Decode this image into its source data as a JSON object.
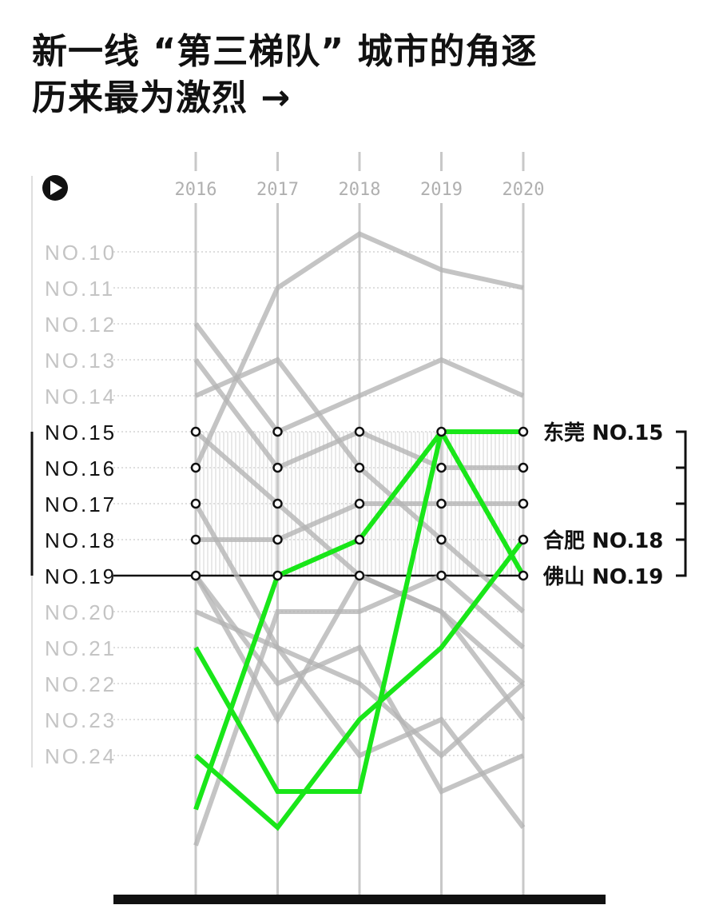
{
  "title": {
    "line1": "新一线 “第三梯队” 城市的角逐",
    "line2": "历来最为激烈 →"
  },
  "colors": {
    "highlight": "#19e619",
    "other": "#b4b4b4",
    "axis": "#c8c8c8",
    "text_dark": "#111111",
    "text_light": "#c4c4c4"
  },
  "icons": {
    "play": "play-icon"
  },
  "chart_data": {
    "type": "line",
    "subtype": "bump",
    "x": [
      "2016",
      "2017",
      "2018",
      "2019",
      "2020"
    ],
    "y_tick_labels": [
      "NO.10",
      "NO.11",
      "NO.12",
      "NO.13",
      "NO.14",
      "NO.15",
      "NO.16",
      "NO.17",
      "NO.18",
      "NO.19",
      "NO.20",
      "NO.21",
      "NO.22",
      "NO.23",
      "NO.24"
    ],
    "y_ticks": [
      10,
      11,
      12,
      13,
      14,
      15,
      16,
      17,
      18,
      19,
      20,
      21,
      22,
      23,
      24
    ],
    "y_range": [
      9,
      26
    ],
    "y_inverted": true,
    "grid": "dotted horizontal",
    "highlighted_band": [
      15,
      19
    ],
    "series": [
      {
        "name": "东莞",
        "label": "东莞 NO.15",
        "highlight": true,
        "values": [
          21,
          25,
          25,
          15,
          15
        ]
      },
      {
        "name": "合肥",
        "label": "合肥 NO.18",
        "highlight": true,
        "values": [
          24,
          26,
          23,
          21,
          18
        ]
      },
      {
        "name": "佛山",
        "label": "佛山 NO.19",
        "highlight": true,
        "values": [
          25.5,
          19,
          18,
          15,
          19
        ]
      },
      {
        "values": [
          12,
          15,
          14,
          13,
          14
        ],
        "highlight": false
      },
      {
        "values": [
          13,
          16,
          15,
          16,
          16
        ],
        "highlight": false
      },
      {
        "values": [
          14,
          13,
          16,
          18,
          20
        ],
        "highlight": false
      },
      {
        "values": [
          15,
          17,
          19,
          20,
          23
        ],
        "highlight": false
      },
      {
        "values": [
          16,
          11,
          9.5,
          10.5,
          11
        ],
        "highlight": false
      },
      {
        "values": [
          17,
          21,
          22,
          24,
          22
        ],
        "highlight": false
      },
      {
        "values": [
          18,
          18,
          17,
          17,
          17
        ],
        "highlight": false
      },
      {
        "values": [
          19,
          22,
          21,
          25,
          24
        ],
        "highlight": false
      },
      {
        "values": [
          20,
          21,
          24,
          23,
          26
        ],
        "highlight": false
      },
      {
        "values": [
          26.5,
          20,
          20,
          19,
          21
        ],
        "highlight": false
      },
      {
        "values": [
          19,
          23,
          19,
          20,
          22
        ],
        "highlight": false
      }
    ],
    "annotations": [
      "东莞 NO.15",
      "合肥 NO.18",
      "佛山 NO.19"
    ]
  }
}
